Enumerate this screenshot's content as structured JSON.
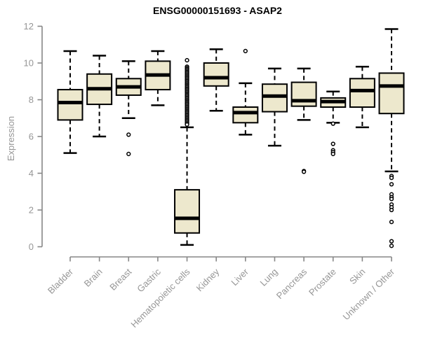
{
  "chart_data": {
    "type": "boxplot",
    "title": "ENSG00000151693 - ASAP2",
    "ylabel": "Expression",
    "xlabel": "",
    "ylim": [
      0,
      12
    ],
    "yticks": [
      0,
      2,
      4,
      6,
      8,
      10,
      12
    ],
    "grid": false,
    "legend": null,
    "categories": [
      "Bladder",
      "Brain",
      "Breast",
      "Gastric",
      "Hematopoietic cells",
      "Kidney",
      "Liver",
      "Lung",
      "Pancreas",
      "Prostate",
      "Skin",
      "Unknown / Other"
    ],
    "series": [
      {
        "name": "Bladder",
        "low": 5.1,
        "q1": 6.9,
        "median": 7.85,
        "q3": 8.55,
        "high": 10.65,
        "outliers": []
      },
      {
        "name": "Brain",
        "low": 6.0,
        "q1": 7.75,
        "median": 8.6,
        "q3": 9.4,
        "high": 10.4,
        "outliers": []
      },
      {
        "name": "Breast",
        "low": 7.0,
        "q1": 8.25,
        "median": 8.7,
        "q3": 9.15,
        "high": 10.1,
        "outliers": [
          6.1,
          5.05
        ]
      },
      {
        "name": "Gastric",
        "low": 7.7,
        "q1": 8.55,
        "median": 9.35,
        "q3": 10.1,
        "high": 10.65,
        "outliers": []
      },
      {
        "name": "Hematopoietic cells",
        "low": 0.1,
        "q1": 0.75,
        "median": 1.55,
        "q3": 3.1,
        "high": 6.5,
        "outliers": [
          10.15,
          9.8,
          9.73,
          9.66,
          9.59,
          9.52,
          9.45,
          9.38,
          9.31,
          9.24,
          9.17,
          9.1,
          9.03,
          8.96,
          8.89,
          8.82,
          8.75,
          8.68,
          8.61,
          8.54,
          8.47,
          8.4,
          8.33,
          8.26,
          8.19,
          8.12,
          8.05,
          7.98,
          7.91,
          7.84,
          7.77,
          7.7,
          7.63,
          7.56,
          7.49,
          7.42,
          7.35,
          7.28,
          7.21,
          7.14,
          7.07,
          7.0,
          6.93,
          6.86,
          6.79,
          6.72,
          6.65
        ]
      },
      {
        "name": "Kidney",
        "low": 7.4,
        "q1": 8.75,
        "median": 9.2,
        "q3": 10.0,
        "high": 10.75,
        "outliers": []
      },
      {
        "name": "Liver",
        "low": 6.1,
        "q1": 6.75,
        "median": 7.3,
        "q3": 7.6,
        "high": 8.9,
        "outliers": [
          10.65
        ]
      },
      {
        "name": "Lung",
        "low": 5.5,
        "q1": 7.35,
        "median": 8.2,
        "q3": 8.85,
        "high": 9.7,
        "outliers": []
      },
      {
        "name": "Pancreas",
        "low": 6.9,
        "q1": 7.65,
        "median": 7.95,
        "q3": 8.95,
        "high": 9.7,
        "outliers": [
          4.12,
          4.08
        ]
      },
      {
        "name": "Prostate",
        "low": 6.75,
        "q1": 7.6,
        "median": 7.9,
        "q3": 8.1,
        "high": 8.45,
        "outliers": [
          6.7,
          5.6,
          5.25,
          5.15,
          5.05
        ]
      },
      {
        "name": "Skin",
        "low": 6.5,
        "q1": 7.6,
        "median": 8.5,
        "q3": 9.15,
        "high": 9.8,
        "outliers": []
      },
      {
        "name": "Unknown / Other",
        "low": 4.1,
        "q1": 7.25,
        "median": 8.75,
        "q3": 9.45,
        "high": 11.85,
        "outliers": [
          3.85,
          3.75,
          3.4,
          2.85,
          2.7,
          2.6,
          2.3,
          2.15,
          2.0,
          1.35,
          0.3,
          0.05
        ]
      }
    ]
  },
  "colors": {
    "box_fill": "#ede8cd",
    "box_stroke": "#000000",
    "median": "#000000",
    "whisker": "#000000",
    "outlier_stroke": "#000000",
    "outlier_fill": "#ffffff",
    "axis": "#878787",
    "tick_label": "#969696",
    "title": "#000000"
  }
}
